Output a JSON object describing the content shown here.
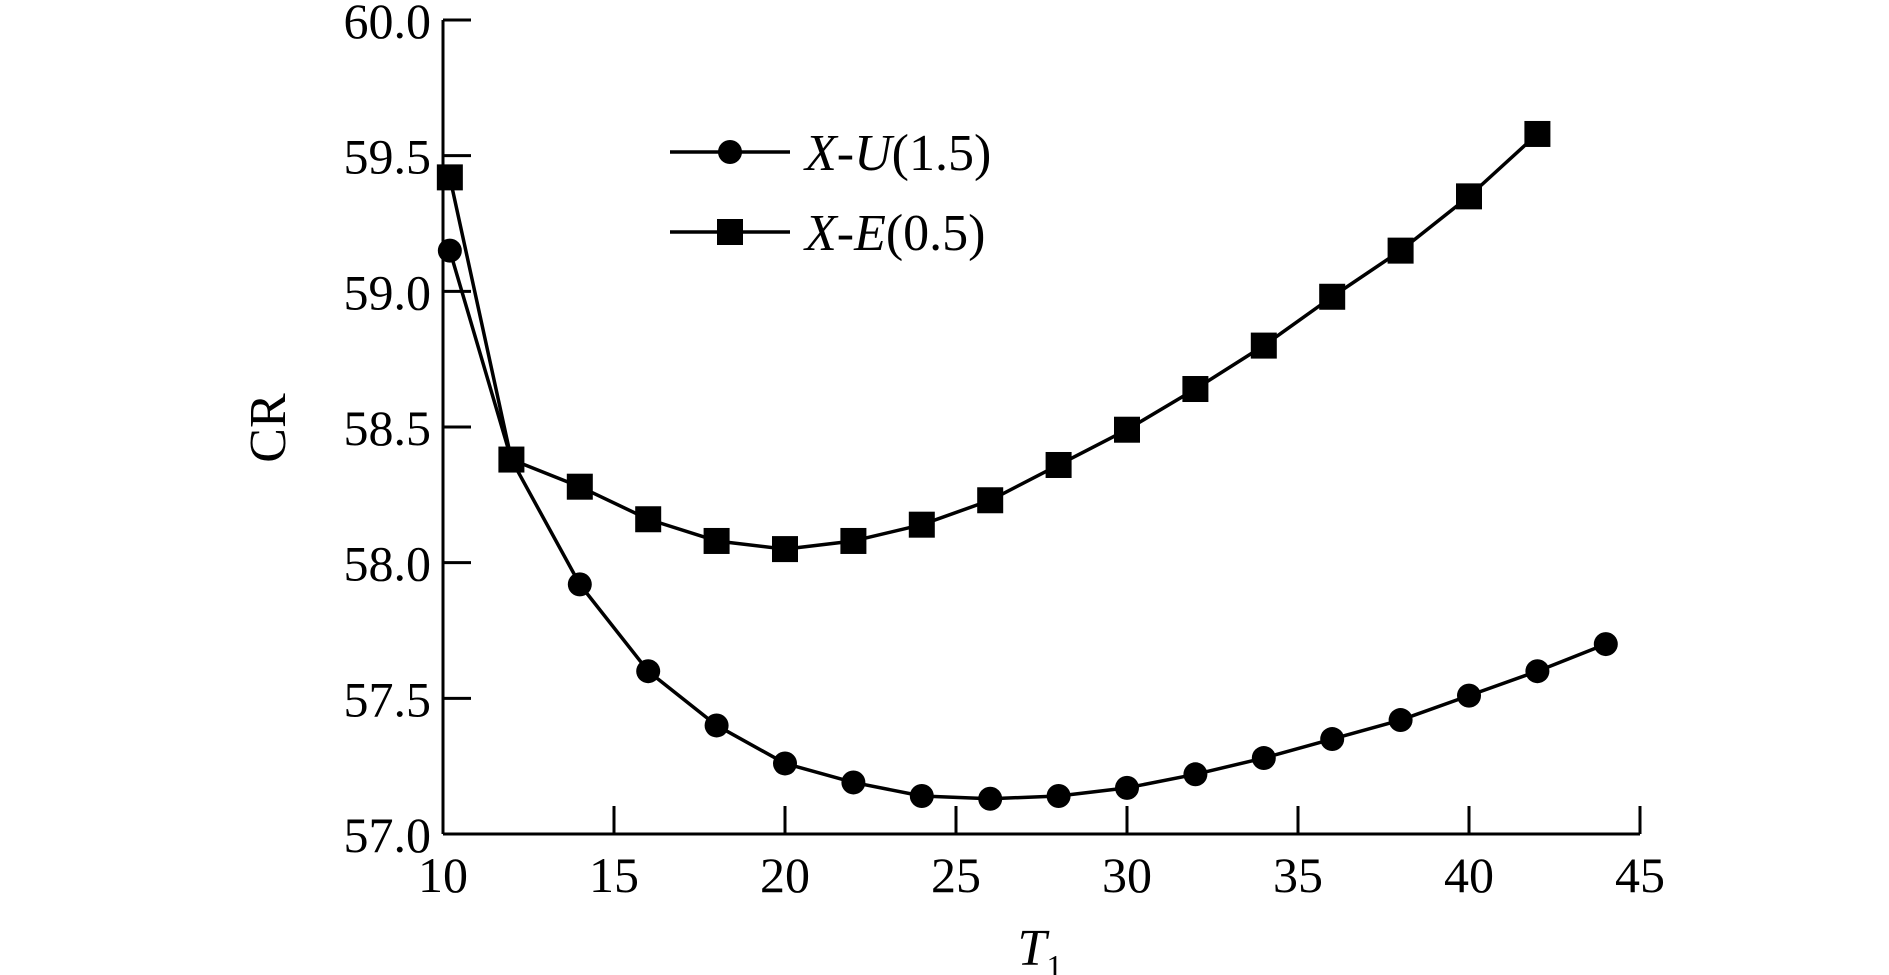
{
  "chart_data": {
    "type": "line",
    "xlabel": "T",
    "xlabel_subscript": "1",
    "ylabel": "CR",
    "xlim": [
      10,
      45
    ],
    "ylim": [
      57.0,
      60.0
    ],
    "xticks": [
      "10",
      "15",
      "20",
      "25",
      "30",
      "35",
      "40",
      "45"
    ],
    "yticks": [
      "57.0",
      "57.5",
      "58.0",
      "58.5",
      "59.0",
      "59.5",
      "60.0"
    ],
    "grid": false,
    "legend_position": "top-left",
    "series": [
      {
        "name_italic_a": "X",
        "name_sep": "-",
        "name_italic_b": "U",
        "name_rest": "(1.5)",
        "marker": "circle",
        "color": "#000000",
        "x": [
          10.2,
          12,
          14,
          16,
          18,
          20,
          22,
          24,
          26,
          28,
          30,
          32,
          34,
          36,
          38,
          40,
          42,
          44
        ],
        "y": [
          59.15,
          58.38,
          57.92,
          57.6,
          57.4,
          57.26,
          57.19,
          57.14,
          57.13,
          57.14,
          57.17,
          57.22,
          57.28,
          57.35,
          57.42,
          57.51,
          57.6,
          57.7
        ]
      },
      {
        "name_italic_a": "X",
        "name_sep": "-",
        "name_italic_b": "E",
        "name_rest": "(0.5)",
        "marker": "square",
        "color": "#000000",
        "x": [
          10.2,
          12,
          14,
          16,
          18,
          20,
          22,
          24,
          26,
          28,
          30,
          32,
          34,
          36,
          38,
          40,
          42
        ],
        "y": [
          59.42,
          58.38,
          58.28,
          58.16,
          58.08,
          58.05,
          58.08,
          58.14,
          58.23,
          58.36,
          58.49,
          58.64,
          58.8,
          58.98,
          59.15,
          59.35,
          59.58
        ]
      }
    ]
  }
}
